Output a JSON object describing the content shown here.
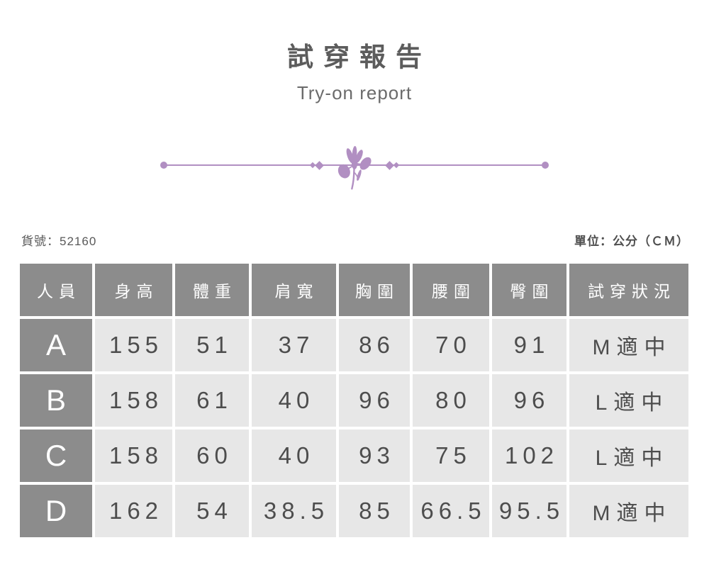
{
  "header": {
    "title": "試穿報告",
    "subtitle": "Try-on report"
  },
  "meta": {
    "product_no_label": "貨號：52160",
    "unit_label": "單位：公分（ＣＭ）"
  },
  "colors": {
    "accent_purple": "#b18fc2",
    "table_header_gray": "#8c8c8c",
    "table_cell_gray": "#e7e7e7",
    "title_gray": "#5c5c5c",
    "value_text_gray": "#4d4d4d"
  },
  "icons": {
    "divider_flower": "iris-flower-icon"
  },
  "chart_data": {
    "type": "table",
    "title": "試穿報告",
    "subtitle": "Try-on report",
    "product_no": "52160",
    "unit": "公分（ＣＭ）",
    "columns": [
      "人員",
      "身高",
      "體重",
      "肩寬",
      "胸圍",
      "腰圍",
      "臀圍",
      "試穿狀況"
    ],
    "rows": [
      {
        "label": "A",
        "values": [
          "155",
          "51",
          "37",
          "86",
          "70",
          "91",
          "M適中"
        ]
      },
      {
        "label": "B",
        "values": [
          "158",
          "61",
          "40",
          "96",
          "80",
          "96",
          "L適中"
        ]
      },
      {
        "label": "C",
        "values": [
          "158",
          "60",
          "40",
          "93",
          "75",
          "102",
          "L適中"
        ]
      },
      {
        "label": "D",
        "values": [
          "162",
          "54",
          "38.5",
          "85",
          "66.5",
          "95.5",
          "M適中"
        ]
      }
    ]
  }
}
